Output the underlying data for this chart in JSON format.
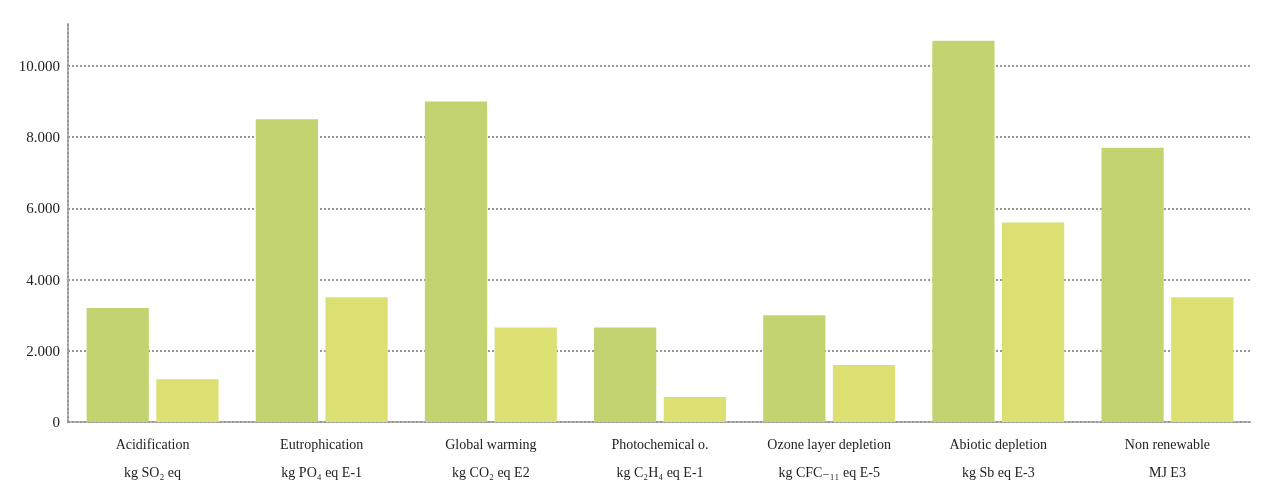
{
  "chart_data": {
    "type": "bar",
    "categories": [
      "Acidification\nkg SO₂ eq",
      "Eutrophication\nkg PO₄ eq E-1",
      "Global warming\nkg CO₂ eq E2",
      "Photochemical o.\nkg C₂H₄ eq E-1",
      "Ozone layer depletion\nkg CFC₋₁₁ eq E-5",
      "Abiotic depletion\nkg Sb eq E-3",
      "Non renewable\nMJ E3"
    ],
    "series": [
      {
        "color": "#c3d36f",
        "values": [
          3200,
          8500,
          9000,
          2650,
          3000,
          10700,
          7700
        ]
      },
      {
        "color": "#dcdf72",
        "values": [
          1200,
          3500,
          2650,
          700,
          1600,
          5600,
          3500
        ]
      }
    ],
    "ylim": [
      0,
      11200
    ],
    "yticks": [
      0,
      {
        "value": 2000,
        "label": "2.000"
      },
      {
        "value": 4000,
        "label": "4.000"
      },
      {
        "value": 6000,
        "label": "6.000"
      },
      {
        "value": 8000,
        "label": "8.000"
      },
      {
        "value": 10000,
        "label": "10.000"
      }
    ],
    "grid": "y"
  }
}
